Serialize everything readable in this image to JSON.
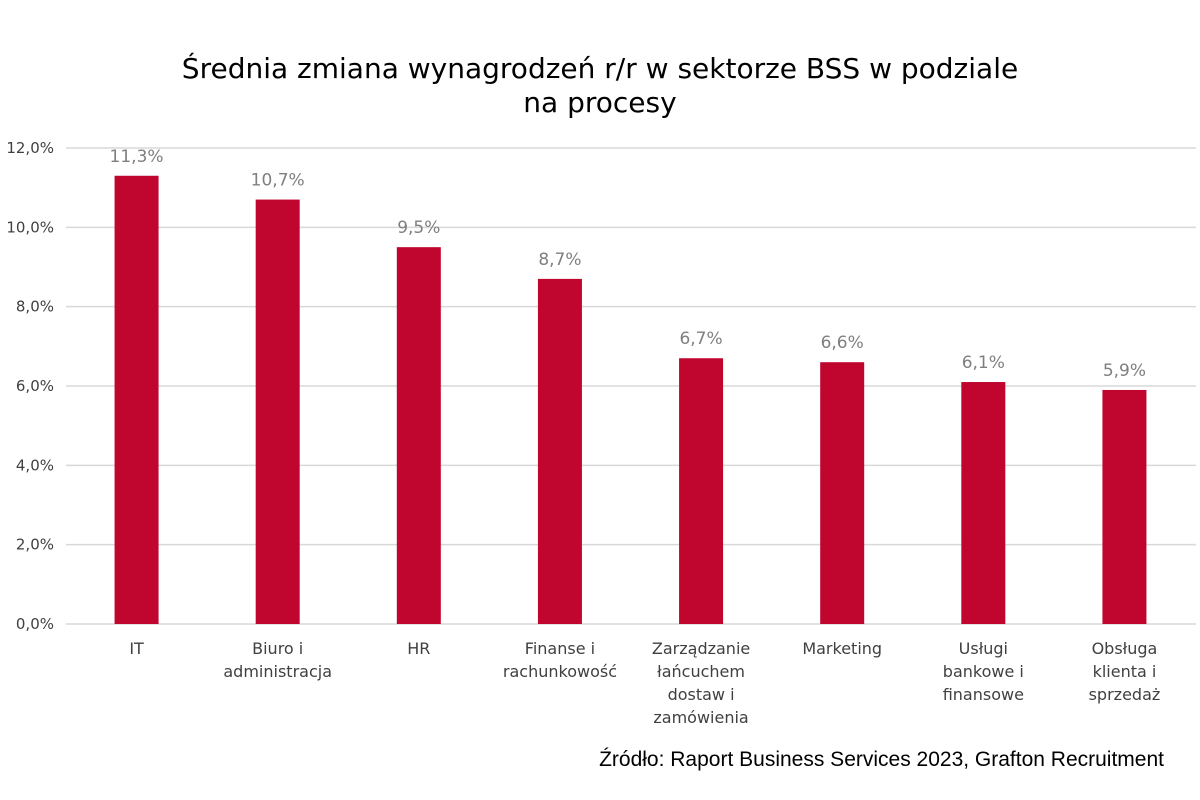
{
  "chart_data": {
    "type": "bar",
    "title_lines": [
      "Średnia zmiana wynagrodzeń r/r w sektorze BSS w podziale",
      "na procesy"
    ],
    "categories": [
      [
        "IT"
      ],
      [
        "Biuro i",
        "administracja"
      ],
      [
        "HR"
      ],
      [
        "Finanse i",
        "rachunkowość"
      ],
      [
        "Zarządzanie",
        "łańcuchem",
        "dostaw i",
        "zamówienia"
      ],
      [
        "Marketing"
      ],
      [
        "Usługi",
        "bankowe i",
        "finansowe"
      ],
      [
        "Obsługa",
        "klienta i",
        "sprzedaż"
      ]
    ],
    "values": [
      11.3,
      10.7,
      9.5,
      8.7,
      6.7,
      6.6,
      6.1,
      5.9
    ],
    "data_labels": [
      "11,3%",
      "10,7%",
      "9,5%",
      "8,7%",
      "6,7%",
      "6,6%",
      "6,1%",
      "5,9%"
    ],
    "ylim": [
      0,
      12
    ],
    "yticks": [
      0,
      2,
      4,
      6,
      8,
      10,
      12
    ],
    "ytick_labels": [
      "0,0%",
      "2,0%",
      "4,0%",
      "6,0%",
      "8,0%",
      "10,0%",
      "12,0%"
    ],
    "grid": true,
    "legend": "none",
    "bar_color": "#c0062f",
    "grid_color": "#d9d9d9"
  },
  "source": "Źródło: Raport Business Services 2023, Grafton Recruitment"
}
